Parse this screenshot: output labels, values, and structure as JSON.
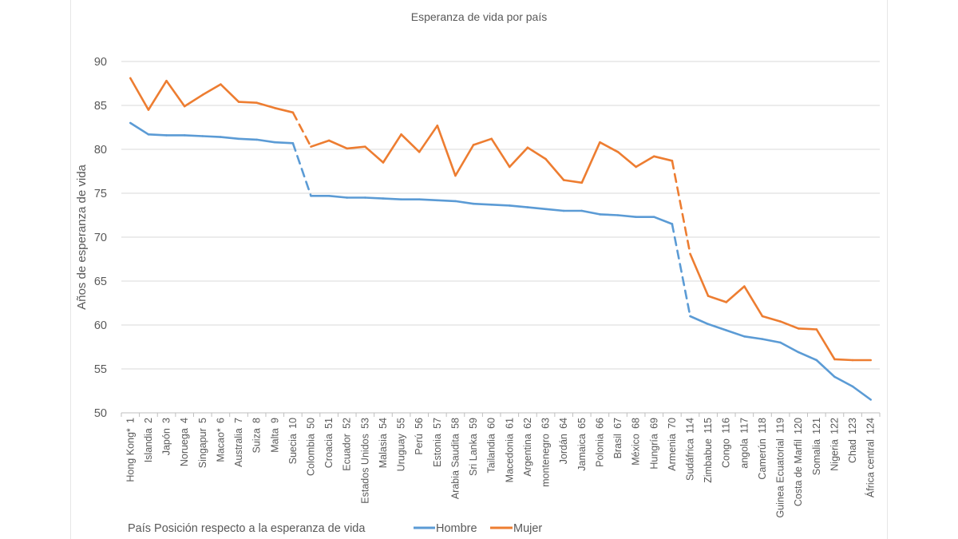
{
  "chart_data": {
    "type": "line",
    "title": "Esperanza de vida por país",
    "ylabel": "Años de esperanza de vida",
    "xlabel": "País  Posición respecto a la esperanza de vida",
    "ylim": [
      50,
      90
    ],
    "yticks": [
      50,
      55,
      60,
      65,
      70,
      75,
      80,
      85,
      90
    ],
    "grid": true,
    "legend_position": "bottom",
    "countries": [
      "Hong Kong*",
      "Islandia",
      "Japón",
      "Noruega",
      "Singapur",
      "Macao*",
      "Australia",
      "Suiza",
      "Malta",
      "Suecia",
      "Colombia",
      "Croacia",
      "Ecuador",
      "Estados Unidos",
      "Malasia",
      "Uruguay",
      "Perú",
      "Estonia",
      "Arabia Saudita",
      "Sri Lanka",
      "Tailandia",
      "Macedonia",
      "Argentina",
      "montenegro",
      "Jordán",
      "Jamaica",
      "Polonia",
      "Brasil",
      "México",
      "Hungría",
      "Armenia",
      "Sudáfrica",
      "Zimbabue",
      "Congo",
      "angola",
      "Camerún",
      "Guinea Ecuatorial",
      "Costa de Marfil",
      "Somalia",
      "Nigeria",
      "Chad",
      "África central"
    ],
    "ranks": [
      1,
      2,
      3,
      4,
      5,
      6,
      7,
      8,
      9,
      10,
      50,
      51,
      52,
      53,
      54,
      55,
      56,
      57,
      58,
      59,
      60,
      61,
      62,
      63,
      64,
      65,
      66,
      67,
      68,
      69,
      70,
      114,
      115,
      116,
      117,
      118,
      119,
      120,
      121,
      122,
      123,
      124
    ],
    "series": [
      {
        "name": "Hombre",
        "color": "#5b9bd5",
        "values": [
          83.0,
          81.7,
          81.6,
          81.6,
          81.5,
          81.4,
          81.2,
          81.1,
          80.8,
          80.7,
          74.7,
          74.7,
          74.5,
          74.5,
          74.4,
          74.3,
          74.3,
          74.2,
          74.1,
          73.8,
          73.7,
          73.6,
          73.4,
          73.2,
          73.0,
          73.0,
          72.6,
          72.5,
          72.3,
          72.3,
          71.5,
          61.0,
          60.1,
          59.4,
          58.7,
          58.4,
          58.0,
          56.9,
          56.0,
          54.1,
          53.0,
          51.5
        ]
      },
      {
        "name": "Mujer",
        "color": "#ed7d31",
        "values": [
          88.1,
          84.5,
          87.8,
          84.9,
          86.2,
          87.4,
          85.4,
          85.3,
          84.7,
          84.2,
          80.3,
          81.0,
          80.1,
          80.3,
          78.5,
          81.7,
          79.7,
          82.7,
          77.0,
          80.5,
          81.2,
          78.0,
          80.2,
          78.9,
          76.5,
          76.2,
          80.8,
          79.7,
          78.0,
          79.2,
          78.7,
          68.1,
          63.3,
          62.6,
          64.4,
          61.0,
          60.4,
          59.6,
          59.5,
          56.1,
          56.0,
          56.0
        ]
      }
    ]
  }
}
